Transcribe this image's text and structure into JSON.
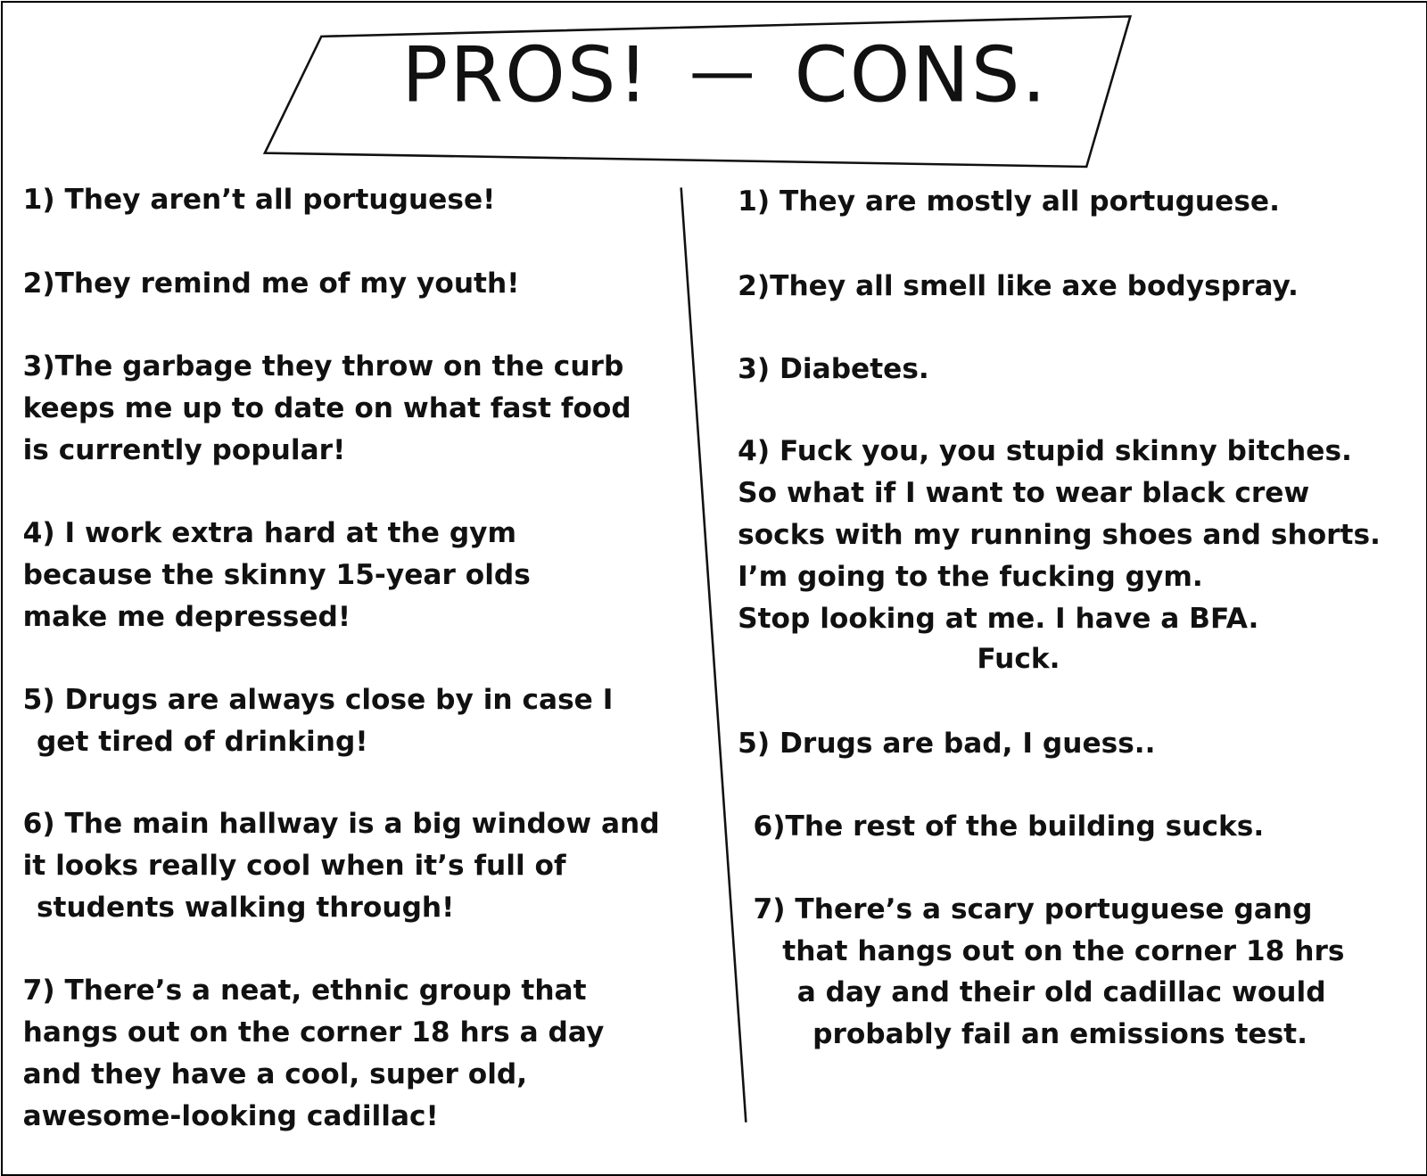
{
  "title": {
    "pros": "PROS!",
    "dash": "—",
    "cons": "CONS."
  },
  "pros": [
    {
      "lines": [
        "1) They aren’t all portuguese!"
      ]
    },
    {
      "lines": [
        "2)They remind me of my youth!"
      ]
    },
    {
      "lines": [
        "3)The garbage they throw on the curb",
        "keeps me up to date on what fast food",
        "is currently popular!"
      ]
    },
    {
      "lines": [
        "4) I work extra hard at the gym",
        "because the skinny 15-year olds",
        "make me depressed!"
      ]
    },
    {
      "lines": [
        "5) Drugs are always close by in case I",
        "get tired of drinking!"
      ]
    },
    {
      "lines": [
        "6) The main hallway is a big window and",
        "it looks really cool when it’s full of",
        "students walking through!"
      ]
    },
    {
      "lines": [
        "7) There’s a neat, ethnic group that",
        "hangs out on the corner 18 hrs a day",
        "and they have a cool, super old,",
        "awesome-looking cadillac!"
      ]
    }
  ],
  "cons": [
    {
      "lines": [
        "1) They are mostly all portuguese."
      ]
    },
    {
      "lines": [
        "2)They all smell like axe bodyspray."
      ]
    },
    {
      "lines": [
        "3) Diabetes."
      ]
    },
    {
      "lines": [
        "4) Fuck you, you stupid skinny bitches.",
        "So what if I want to wear black crew",
        "socks with my running shoes and shorts.",
        "I’m going to the fucking gym.",
        "Stop looking at me. I have a BFA.",
        "Fuck."
      ]
    },
    {
      "lines": [
        "5) Drugs are bad, I guess.."
      ]
    },
    {
      "lines": [
        "6)The rest of the building  sucks."
      ]
    },
    {
      "lines": [
        "7) There’s a scary portuguese gang",
        "that hangs out on the corner 18 hrs",
        "a day and their old cadillac would",
        "probably fail an emissions test."
      ]
    }
  ]
}
